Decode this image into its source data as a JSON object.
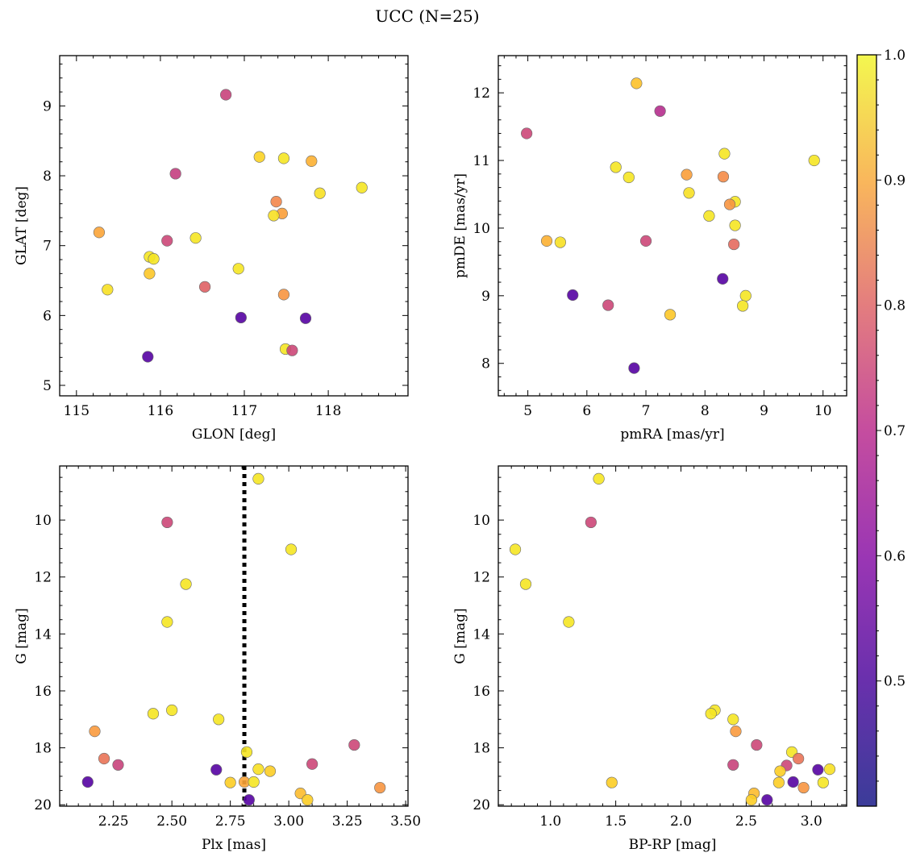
{
  "figure": {
    "title": "UCC (N=25)"
  },
  "colorbar": {
    "colormap": "plasma",
    "range": [
      0.4,
      1.0
    ],
    "ticks": [
      "0.5",
      "0.6",
      "0.7",
      "0.8",
      "0.9",
      "1.0"
    ]
  },
  "chart_data": [
    {
      "type": "scatter",
      "xlabel": "GLON [deg]",
      "ylabel": "GLAT [deg]",
      "xlim": [
        114.8,
        118.95
      ],
      "ylim": [
        4.85,
        9.72
      ],
      "xticks": [
        "115",
        "116",
        "117",
        "118"
      ],
      "yticks": [
        "5",
        "6",
        "7",
        "8",
        "9"
      ],
      "y_inverted": false,
      "points": [
        {
          "x": 116.78,
          "y": 9.16,
          "c": 0.65
        },
        {
          "x": 116.18,
          "y": 8.03,
          "c": 0.64
        },
        {
          "x": 117.18,
          "y": 8.27,
          "c": 0.94
        },
        {
          "x": 117.47,
          "y": 8.25,
          "c": 0.97
        },
        {
          "x": 117.8,
          "y": 8.21,
          "c": 0.88
        },
        {
          "x": 117.9,
          "y": 7.75,
          "c": 0.96
        },
        {
          "x": 118.4,
          "y": 7.83,
          "c": 0.97
        },
        {
          "x": 117.38,
          "y": 7.63,
          "c": 0.8
        },
        {
          "x": 117.45,
          "y": 7.46,
          "c": 0.85
        },
        {
          "x": 117.35,
          "y": 7.43,
          "c": 0.96
        },
        {
          "x": 115.27,
          "y": 7.19,
          "c": 0.86
        },
        {
          "x": 116.42,
          "y": 7.11,
          "c": 0.97
        },
        {
          "x": 116.08,
          "y": 7.07,
          "c": 0.66
        },
        {
          "x": 115.87,
          "y": 6.84,
          "c": 0.97
        },
        {
          "x": 115.92,
          "y": 6.81,
          "c": 0.97
        },
        {
          "x": 116.93,
          "y": 6.67,
          "c": 0.97
        },
        {
          "x": 115.87,
          "y": 6.6,
          "c": 0.92
        },
        {
          "x": 116.53,
          "y": 6.41,
          "c": 0.72
        },
        {
          "x": 115.37,
          "y": 6.37,
          "c": 0.96
        },
        {
          "x": 117.47,
          "y": 6.3,
          "c": 0.83
        },
        {
          "x": 116.96,
          "y": 5.97,
          "c": 0.42
        },
        {
          "x": 117.73,
          "y": 5.96,
          "c": 0.42
        },
        {
          "x": 117.49,
          "y": 5.52,
          "c": 0.97
        },
        {
          "x": 117.57,
          "y": 5.5,
          "c": 0.66
        },
        {
          "x": 115.85,
          "y": 5.41,
          "c": 0.42
        }
      ]
    },
    {
      "type": "scatter",
      "xlabel": "pmRA [mas/yr]",
      "ylabel": "pmDE [mas/yr]",
      "xlim": [
        4.5,
        10.4
      ],
      "ylim": [
        7.52,
        12.55
      ],
      "xticks": [
        "5",
        "6",
        "7",
        "8",
        "9",
        "10"
      ],
      "yticks": [
        "8",
        "9",
        "10",
        "11",
        "12"
      ],
      "y_inverted": false,
      "points": [
        {
          "x": 6.84,
          "y": 12.14,
          "c": 0.91
        },
        {
          "x": 7.24,
          "y": 11.73,
          "c": 0.6
        },
        {
          "x": 4.98,
          "y": 11.4,
          "c": 0.66
        },
        {
          "x": 8.33,
          "y": 11.1,
          "c": 0.97
        },
        {
          "x": 9.85,
          "y": 11.0,
          "c": 0.97
        },
        {
          "x": 6.49,
          "y": 10.9,
          "c": 0.97
        },
        {
          "x": 6.71,
          "y": 10.75,
          "c": 0.97
        },
        {
          "x": 7.69,
          "y": 10.79,
          "c": 0.85
        },
        {
          "x": 8.31,
          "y": 10.76,
          "c": 0.81
        },
        {
          "x": 7.73,
          "y": 10.52,
          "c": 0.96
        },
        {
          "x": 8.51,
          "y": 10.39,
          "c": 0.97
        },
        {
          "x": 8.42,
          "y": 10.35,
          "c": 0.83
        },
        {
          "x": 8.07,
          "y": 10.18,
          "c": 0.97
        },
        {
          "x": 8.51,
          "y": 10.04,
          "c": 0.97
        },
        {
          "x": 5.32,
          "y": 9.81,
          "c": 0.88
        },
        {
          "x": 5.55,
          "y": 9.79,
          "c": 0.96
        },
        {
          "x": 7.0,
          "y": 9.81,
          "c": 0.66
        },
        {
          "x": 8.49,
          "y": 9.76,
          "c": 0.74
        },
        {
          "x": 8.3,
          "y": 9.25,
          "c": 0.42
        },
        {
          "x": 5.76,
          "y": 9.01,
          "c": 0.42
        },
        {
          "x": 8.69,
          "y": 9.0,
          "c": 0.97
        },
        {
          "x": 6.36,
          "y": 8.86,
          "c": 0.66
        },
        {
          "x": 8.64,
          "y": 8.85,
          "c": 0.97
        },
        {
          "x": 7.41,
          "y": 8.72,
          "c": 0.92
        },
        {
          "x": 6.8,
          "y": 7.93,
          "c": 0.42
        }
      ]
    },
    {
      "type": "scatter",
      "xlabel": "Plx [mas]",
      "ylabel": "G [mag]",
      "xlim": [
        2.02,
        3.51
      ],
      "ylim": [
        20.05,
        8.1
      ],
      "xticks": [
        "2.25",
        "2.50",
        "2.75",
        "3.00",
        "3.25",
        "3.50"
      ],
      "yticks": [
        "10",
        "12",
        "14",
        "16",
        "18",
        "20"
      ],
      "y_inverted": true,
      "vline": {
        "x": 2.81,
        "style": "dotted"
      },
      "points": [
        {
          "x": 2.87,
          "y": 8.55,
          "c": 0.97
        },
        {
          "x": 2.48,
          "y": 10.08,
          "c": 0.66
        },
        {
          "x": 3.01,
          "y": 11.03,
          "c": 0.97
        },
        {
          "x": 2.56,
          "y": 12.25,
          "c": 0.97
        },
        {
          "x": 2.48,
          "y": 13.58,
          "c": 0.97
        },
        {
          "x": 2.5,
          "y": 16.68,
          "c": 0.97
        },
        {
          "x": 2.42,
          "y": 16.8,
          "c": 0.97
        },
        {
          "x": 2.7,
          "y": 17.0,
          "c": 0.97
        },
        {
          "x": 2.17,
          "y": 17.42,
          "c": 0.84
        },
        {
          "x": 3.28,
          "y": 17.9,
          "c": 0.66
        },
        {
          "x": 2.82,
          "y": 18.15,
          "c": 0.97
        },
        {
          "x": 2.21,
          "y": 18.38,
          "c": 0.76
        },
        {
          "x": 2.27,
          "y": 18.6,
          "c": 0.65
        },
        {
          "x": 3.1,
          "y": 18.57,
          "c": 0.66
        },
        {
          "x": 2.87,
          "y": 18.75,
          "c": 0.96
        },
        {
          "x": 2.69,
          "y": 18.77,
          "c": 0.42
        },
        {
          "x": 2.92,
          "y": 18.82,
          "c": 0.93
        },
        {
          "x": 2.14,
          "y": 19.2,
          "c": 0.42
        },
        {
          "x": 2.75,
          "y": 19.22,
          "c": 0.93
        },
        {
          "x": 2.81,
          "y": 19.2,
          "c": 0.86
        },
        {
          "x": 2.85,
          "y": 19.2,
          "c": 0.97
        },
        {
          "x": 3.39,
          "y": 19.4,
          "c": 0.83
        },
        {
          "x": 3.05,
          "y": 19.6,
          "c": 0.9
        },
        {
          "x": 2.83,
          "y": 19.83,
          "c": 0.42
        },
        {
          "x": 3.08,
          "y": 19.83,
          "c": 0.93
        }
      ]
    },
    {
      "type": "scatter",
      "xlabel": "BP-RP [mag]",
      "ylabel": "G [mag]",
      "xlim": [
        0.6,
        3.27
      ],
      "ylim": [
        20.05,
        8.1
      ],
      "xticks": [
        "1.0",
        "1.5",
        "2.0",
        "2.5",
        "3.0"
      ],
      "yticks": [
        "10",
        "12",
        "14",
        "16",
        "18",
        "20"
      ],
      "y_inverted": true,
      "points": [
        {
          "x": 1.37,
          "y": 8.55,
          "c": 0.97
        },
        {
          "x": 1.31,
          "y": 10.08,
          "c": 0.66
        },
        {
          "x": 0.73,
          "y": 11.03,
          "c": 0.97
        },
        {
          "x": 0.81,
          "y": 12.25,
          "c": 0.97
        },
        {
          "x": 1.14,
          "y": 13.58,
          "c": 0.97
        },
        {
          "x": 2.26,
          "y": 16.68,
          "c": 0.97
        },
        {
          "x": 2.23,
          "y": 16.8,
          "c": 0.97
        },
        {
          "x": 2.4,
          "y": 17.0,
          "c": 0.97
        },
        {
          "x": 2.42,
          "y": 17.42,
          "c": 0.84
        },
        {
          "x": 2.58,
          "y": 17.9,
          "c": 0.66
        },
        {
          "x": 2.85,
          "y": 18.15,
          "c": 0.97
        },
        {
          "x": 2.9,
          "y": 18.38,
          "c": 0.76
        },
        {
          "x": 2.4,
          "y": 18.6,
          "c": 0.65
        },
        {
          "x": 2.81,
          "y": 18.62,
          "c": 0.66
        },
        {
          "x": 3.14,
          "y": 18.75,
          "c": 0.96
        },
        {
          "x": 3.05,
          "y": 18.77,
          "c": 0.42
        },
        {
          "x": 2.76,
          "y": 18.82,
          "c": 0.93
        },
        {
          "x": 2.86,
          "y": 19.2,
          "c": 0.42
        },
        {
          "x": 2.75,
          "y": 19.22,
          "c": 0.93
        },
        {
          "x": 1.47,
          "y": 19.22,
          "c": 0.93
        },
        {
          "x": 3.09,
          "y": 19.22,
          "c": 0.97
        },
        {
          "x": 2.94,
          "y": 19.4,
          "c": 0.83
        },
        {
          "x": 2.56,
          "y": 19.6,
          "c": 0.9
        },
        {
          "x": 2.66,
          "y": 19.83,
          "c": 0.42
        },
        {
          "x": 2.54,
          "y": 19.83,
          "c": 0.93
        }
      ]
    }
  ]
}
